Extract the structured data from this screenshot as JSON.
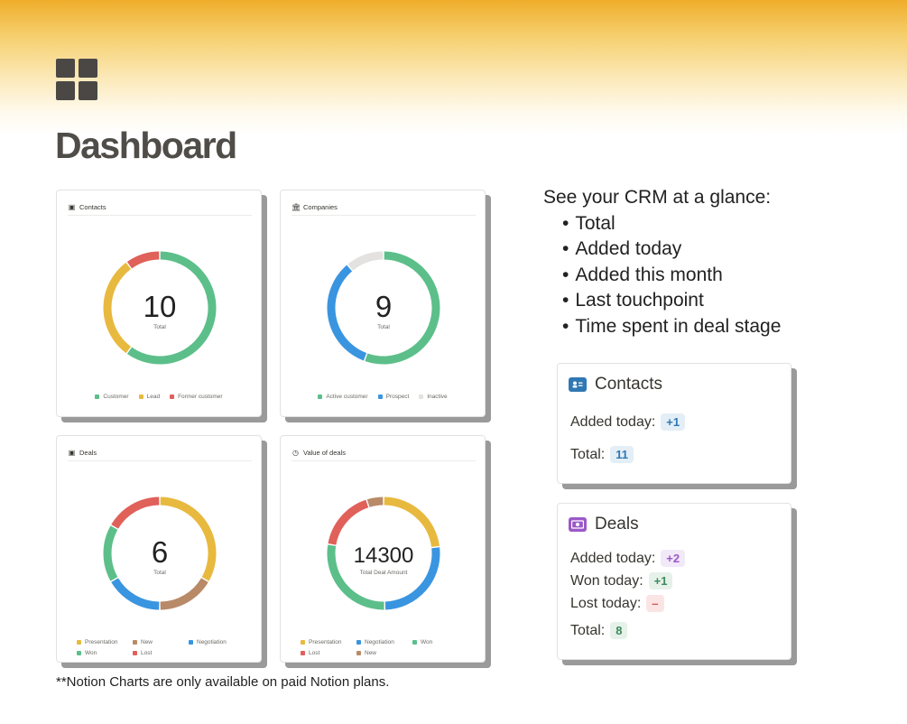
{
  "page": {
    "title": "Dashboard",
    "icon": "grid-icon"
  },
  "charts": [
    {
      "id": "contacts",
      "title": "Contacts",
      "icon": "contact-card-icon",
      "icon_glyph": "▣",
      "center_value": "10",
      "center_label": "Total",
      "chart_data": {
        "type": "pie",
        "categories": [
          "Customer",
          "Lead",
          "Former customer"
        ],
        "values": [
          6,
          3,
          1
        ],
        "colors": [
          "#5cbf8a",
          "#e8b93f",
          "#e0605a"
        ]
      }
    },
    {
      "id": "companies",
      "title": "Companies",
      "icon": "bank-icon",
      "icon_glyph": "🏛",
      "center_value": "9",
      "center_label": "Total",
      "chart_data": {
        "type": "pie",
        "categories": [
          "Active customer",
          "Prospect",
          "Inactive"
        ],
        "values": [
          5,
          3,
          1
        ],
        "colors": [
          "#5cbf8a",
          "#3a95e0",
          "#e3e2e0"
        ]
      }
    },
    {
      "id": "deals",
      "title": "Deals",
      "icon": "money-icon",
      "icon_glyph": "▣",
      "center_value": "6",
      "center_label": "Total",
      "chart_data": {
        "type": "pie",
        "categories": [
          "Presentation",
          "New",
          "Negotiation",
          "Won",
          "Lost"
        ],
        "values": [
          2,
          1,
          1,
          1,
          1
        ],
        "colors": [
          "#e8b93f",
          "#b98a68",
          "#3a95e0",
          "#5cbf8a",
          "#e0605a"
        ]
      }
    },
    {
      "id": "value",
      "title": "Value of deals",
      "icon": "clock-icon",
      "icon_glyph": "◷",
      "center_value": "14300",
      "center_label": "Total Deal Amount",
      "chart_data": {
        "type": "pie",
        "categories": [
          "Presentation",
          "Negotiation",
          "Won",
          "Lost",
          "New"
        ],
        "values": [
          3300,
          3800,
          4000,
          2500,
          700
        ],
        "colors": [
          "#e8b93f",
          "#3a95e0",
          "#5cbf8a",
          "#e0605a",
          "#b98a68"
        ]
      }
    }
  ],
  "features": {
    "heading": "See your CRM at a glance:",
    "items": [
      "Total",
      "Added today",
      "Added this month",
      "Last touchpoint",
      "Time spent in deal stage"
    ]
  },
  "contacts_card": {
    "title": "Contacts",
    "icon": "contact-card-icon",
    "icon_color": "#2f78b4",
    "added_label": "Added today:",
    "added_value": "+1",
    "total_label": "Total:",
    "total_value": "11"
  },
  "deals_card": {
    "title": "Deals",
    "icon": "money-icon",
    "icon_color": "#9b59c8",
    "added_label": "Added today:",
    "added_value": "+2",
    "won_label": "Won today:",
    "won_value": "+1",
    "lost_label": "Lost today:",
    "lost_value": "–",
    "total_label": "Total:",
    "total_value": "8"
  },
  "footnote": "**Notion Charts are only available on paid Notion plans."
}
